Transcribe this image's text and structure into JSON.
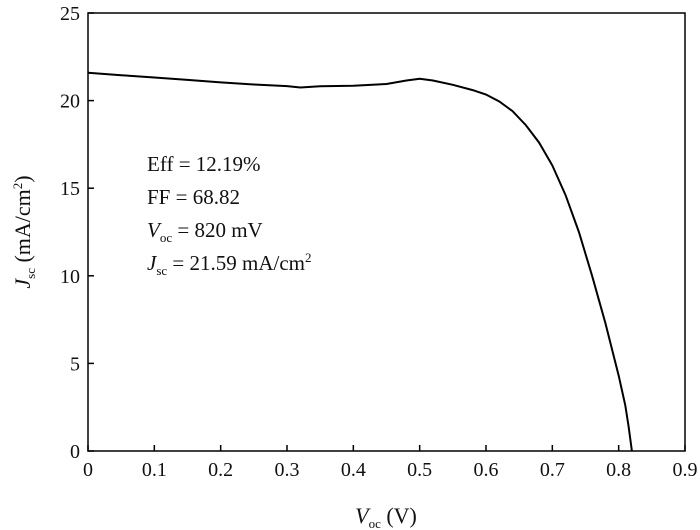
{
  "chart_data": {
    "type": "line",
    "title": "",
    "xlabel": {
      "symbol": "V",
      "subscript": "oc",
      "rest": " (V)"
    },
    "ylabel": {
      "symbol": "J",
      "subscript": "sc",
      "rest": " (mA/cm",
      "superscript": "2",
      "close": ")"
    },
    "xlim": [
      0,
      0.9
    ],
    "ylim": [
      0,
      25
    ],
    "xticks": [
      0,
      0.1,
      0.2,
      0.3,
      0.4,
      0.5,
      0.6,
      0.7,
      0.8,
      0.9
    ],
    "xtick_labels": [
      "0",
      "0.1",
      "0.2",
      "0.3",
      "0.4",
      "0.5",
      "0.6",
      "0.7",
      "0.8",
      "0.9"
    ],
    "yticks": [
      0,
      5,
      10,
      15,
      20,
      25
    ],
    "ytick_labels": [
      "0",
      "5",
      "10",
      "15",
      "20",
      "25"
    ],
    "grid": false,
    "legend": "none",
    "line_color": "#000000",
    "series": [
      {
        "x": [
          0.0,
          0.05,
          0.1,
          0.15,
          0.2,
          0.25,
          0.3,
          0.32,
          0.35,
          0.4,
          0.45,
          0.48,
          0.5,
          0.52,
          0.55,
          0.58,
          0.6,
          0.62,
          0.64,
          0.66,
          0.68,
          0.7,
          0.72,
          0.74,
          0.76,
          0.78,
          0.8,
          0.81,
          0.815,
          0.82
        ],
        "y": [
          21.59,
          21.45,
          21.32,
          21.18,
          21.04,
          20.92,
          20.83,
          20.75,
          20.82,
          20.85,
          20.95,
          21.15,
          21.25,
          21.15,
          20.9,
          20.6,
          20.35,
          19.95,
          19.4,
          18.6,
          17.6,
          16.3,
          14.6,
          12.5,
          10.0,
          7.3,
          4.3,
          2.6,
          1.4,
          0.0
        ]
      }
    ],
    "annotations": [
      {
        "label": "Eff",
        "value": " = 12.19%"
      },
      {
        "label": "FF",
        "value": " = 68.82"
      },
      {
        "label": "V",
        "subscript": "oc",
        "value": " = 820 mV"
      },
      {
        "label": "J",
        "subscript": "sc",
        "value": " = 21.59 mA/cm",
        "superscript": "2"
      }
    ]
  }
}
